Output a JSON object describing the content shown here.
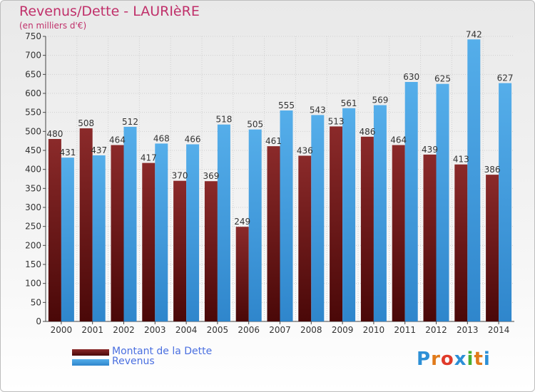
{
  "chart_data": {
    "type": "bar",
    "title": "Revenus/Dette - LAURIèRE",
    "subtitle": "(en milliers d'€)",
    "categories": [
      "2000",
      "2001",
      "2002",
      "2003",
      "2004",
      "2005",
      "2006",
      "2007",
      "2008",
      "2009",
      "2010",
      "2011",
      "2012",
      "2013",
      "2014"
    ],
    "series": [
      {
        "name": "Montant de la Dette",
        "color": "#7a1f1f",
        "values": [
          480,
          508,
          464,
          417,
          370,
          369,
          249,
          461,
          436,
          513,
          486,
          464,
          439,
          413,
          386
        ]
      },
      {
        "name": "Revenus",
        "color": "#4aa3e6",
        "values": [
          431,
          437,
          512,
          468,
          466,
          518,
          505,
          555,
          543,
          561,
          569,
          630,
          625,
          742,
          627
        ]
      }
    ],
    "ylim": [
      0,
      750
    ],
    "yticks": [
      0,
      50,
      100,
      150,
      200,
      250,
      300,
      350,
      400,
      450,
      500,
      550,
      600,
      650,
      700,
      750
    ],
    "grid": true,
    "legend_position": "bottom-left"
  },
  "brand": {
    "text": "Proxiti",
    "colors": [
      "#2c8fd6",
      "#e07a1a",
      "#e03a2a",
      "#2c8fd6",
      "#48b030",
      "#e07a1a",
      "#2c8fd6"
    ]
  }
}
